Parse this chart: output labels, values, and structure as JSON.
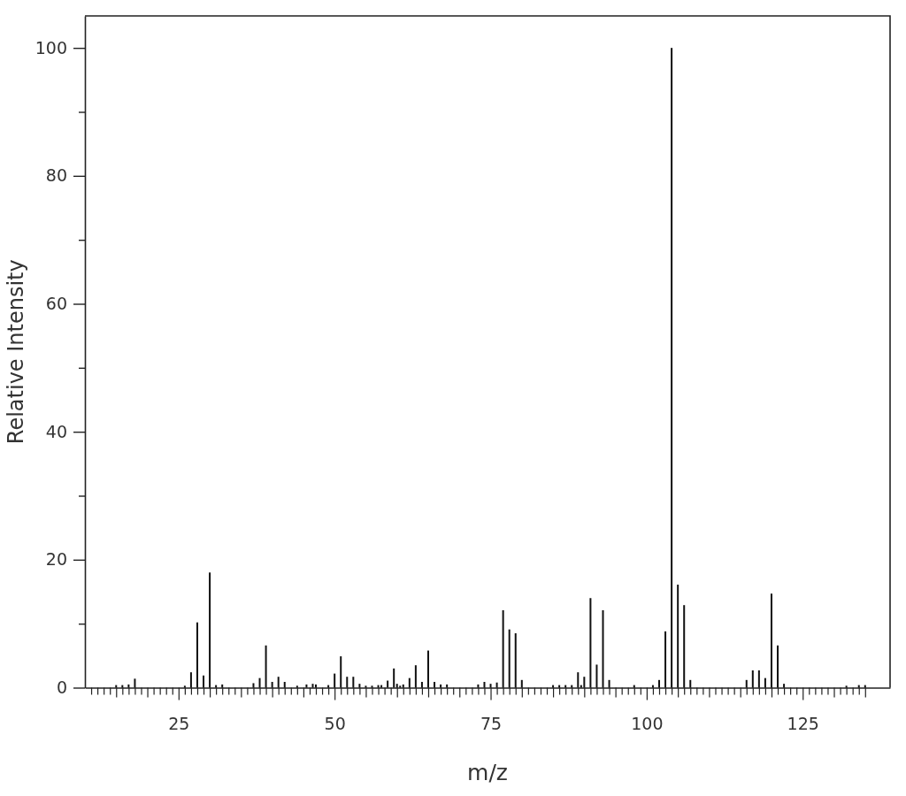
{
  "chart_data": {
    "type": "bar",
    "xlabel": "m/z",
    "ylabel": "Relative Intensity",
    "color": "#111111",
    "x": [
      15,
      16,
      17,
      18,
      26,
      27,
      28,
      29,
      30,
      31,
      32,
      37,
      38,
      39,
      40,
      41,
      42,
      44,
      45.5,
      46.5,
      47,
      49,
      50,
      51,
      52,
      53,
      54,
      55,
      56,
      57,
      57.5,
      58.5,
      59.5,
      60,
      60.5,
      61,
      62,
      63,
      64,
      65,
      66,
      67,
      68,
      73,
      74,
      75,
      76,
      77,
      78,
      79,
      80,
      85,
      86,
      87,
      88,
      89,
      89.5,
      90,
      91,
      92,
      93,
      94,
      98,
      101,
      102,
      103,
      104,
      105,
      106,
      107,
      116,
      117,
      118,
      119,
      120,
      121,
      122,
      132,
      134,
      135
    ],
    "values": [
      0.4,
      0.4,
      0.5,
      1.4,
      0.3,
      2.4,
      10.2,
      1.9,
      18.0,
      0.4,
      0.5,
      0.7,
      1.5,
      6.6,
      0.9,
      1.7,
      0.9,
      0.3,
      0.5,
      0.6,
      0.5,
      0.4,
      2.2,
      4.9,
      1.7,
      1.7,
      0.6,
      0.3,
      0.3,
      0.4,
      0.4,
      1.1,
      3.0,
      0.6,
      0.3,
      0.5,
      1.5,
      3.5,
      0.9,
      5.8,
      0.9,
      0.5,
      0.5,
      0.5,
      0.9,
      0.6,
      0.8,
      12.1,
      9.1,
      8.5,
      1.2,
      0.4,
      0.4,
      0.4,
      0.4,
      2.4,
      0.4,
      1.7,
      14.0,
      3.6,
      12.1,
      1.2,
      0.4,
      0.4,
      1.2,
      8.8,
      100,
      16.1,
      12.9,
      1.2,
      1.2,
      2.7,
      2.7,
      1.5,
      14.7,
      6.6,
      0.6,
      0.3,
      0.4,
      0.4
    ],
    "xlim": [
      10,
      139
    ],
    "xticks": [
      {
        "value": 11,
        "label": null
      },
      {
        "value": 12,
        "label": null
      },
      {
        "value": 13,
        "label": null
      },
      {
        "value": 14,
        "label": null
      },
      {
        "value": 15,
        "label": null
      },
      {
        "value": 16,
        "label": null
      },
      {
        "value": 17,
        "label": null
      },
      {
        "value": 18,
        "label": null
      },
      {
        "value": 19,
        "label": null
      },
      {
        "value": 20,
        "label": null
      },
      {
        "value": 21,
        "label": null
      },
      {
        "value": 22,
        "label": null
      },
      {
        "value": 23,
        "label": null
      },
      {
        "value": 24,
        "label": null
      },
      25,
      {
        "value": 26,
        "label": null
      },
      {
        "value": 27,
        "label": null
      },
      {
        "value": 28,
        "label": null
      },
      {
        "value": 29,
        "label": null
      },
      {
        "value": 30,
        "label": null
      },
      {
        "value": 31,
        "label": null
      },
      {
        "value": 32,
        "label": null
      },
      {
        "value": 33,
        "label": null
      },
      {
        "value": 34,
        "label": null
      },
      {
        "value": 35,
        "label": null
      },
      {
        "value": 36,
        "label": null
      },
      {
        "value": 37,
        "label": null
      },
      {
        "value": 38,
        "label": null
      },
      {
        "value": 39,
        "label": null
      },
      {
        "value": 40,
        "label": null
      },
      {
        "value": 41,
        "label": null
      },
      {
        "value": 42,
        "label": null
      },
      {
        "value": 43,
        "label": null
      },
      {
        "value": 44,
        "label": null
      },
      {
        "value": 45,
        "label": null
      },
      {
        "value": 46,
        "label": null
      },
      {
        "value": 47,
        "label": null
      },
      {
        "value": 48,
        "label": null
      },
      {
        "value": 49,
        "label": null
      },
      50,
      {
        "value": 51,
        "label": null
      },
      {
        "value": 52,
        "label": null
      },
      {
        "value": 53,
        "label": null
      },
      {
        "value": 54,
        "label": null
      },
      {
        "value": 55,
        "label": null
      },
      {
        "value": 56,
        "label": null
      },
      {
        "value": 57,
        "label": null
      },
      {
        "value": 58,
        "label": null
      },
      {
        "value": 59,
        "label": null
      },
      {
        "value": 60,
        "label": null
      },
      {
        "value": 61,
        "label": null
      },
      {
        "value": 62,
        "label": null
      },
      {
        "value": 63,
        "label": null
      },
      {
        "value": 64,
        "label": null
      },
      {
        "value": 65,
        "label": null
      },
      {
        "value": 66,
        "label": null
      },
      {
        "value": 67,
        "label": null
      },
      {
        "value": 68,
        "label": null
      },
      {
        "value": 69,
        "label": null
      },
      {
        "value": 70,
        "label": null
      },
      {
        "value": 71,
        "label": null
      },
      {
        "value": 72,
        "label": null
      },
      {
        "value": 73,
        "label": null
      },
      {
        "value": 74,
        "label": null
      },
      75,
      {
        "value": 76,
        "label": null
      },
      {
        "value": 77,
        "label": null
      },
      {
        "value": 78,
        "label": null
      },
      {
        "value": 79,
        "label": null
      },
      {
        "value": 80,
        "label": null
      },
      {
        "value": 81,
        "label": null
      },
      {
        "value": 82,
        "label": null
      },
      {
        "value": 83,
        "label": null
      },
      {
        "value": 84,
        "label": null
      },
      {
        "value": 85,
        "label": null
      },
      {
        "value": 86,
        "label": null
      },
      {
        "value": 87,
        "label": null
      },
      {
        "value": 88,
        "label": null
      },
      {
        "value": 89,
        "label": null
      },
      {
        "value": 90,
        "label": null
      },
      {
        "value": 91,
        "label": null
      },
      {
        "value": 92,
        "label": null
      },
      {
        "value": 93,
        "label": null
      },
      {
        "value": 94,
        "label": null
      },
      {
        "value": 95,
        "label": null
      },
      {
        "value": 96,
        "label": null
      },
      {
        "value": 97,
        "label": null
      },
      {
        "value": 98,
        "label": null
      },
      {
        "value": 99,
        "label": null
      },
      100,
      {
        "value": 101,
        "label": null
      },
      {
        "value": 102,
        "label": null
      },
      {
        "value": 103,
        "label": null
      },
      {
        "value": 104,
        "label": null
      },
      {
        "value": 105,
        "label": null
      },
      {
        "value": 106,
        "label": null
      },
      {
        "value": 107,
        "label": null
      },
      {
        "value": 108,
        "label": null
      },
      {
        "value": 109,
        "label": null
      },
      {
        "value": 110,
        "label": null
      },
      {
        "value": 111,
        "label": null
      },
      {
        "value": 112,
        "label": null
      },
      {
        "value": 113,
        "label": null
      },
      {
        "value": 114,
        "label": null
      },
      {
        "value": 115,
        "label": null
      },
      {
        "value": 116,
        "label": null
      },
      {
        "value": 117,
        "label": null
      },
      {
        "value": 118,
        "label": null
      },
      {
        "value": 119,
        "label": null
      },
      {
        "value": 120,
        "label": null
      },
      {
        "value": 121,
        "label": null
      },
      {
        "value": 122,
        "label": null
      },
      {
        "value": 123,
        "label": null
      },
      {
        "value": 124,
        "label": null
      },
      125,
      {
        "value": 126,
        "label": null
      },
      {
        "value": 127,
        "label": null
      },
      {
        "value": 128,
        "label": null
      },
      {
        "value": 129,
        "label": null
      },
      {
        "value": 130,
        "label": null
      },
      {
        "value": 131,
        "label": null
      },
      {
        "value": 132,
        "label": null
      },
      {
        "value": 133,
        "label": null
      },
      {
        "value": 134,
        "label": null
      },
      {
        "value": 135,
        "label": null
      }
    ],
    "ylim": [
      0,
      105
    ],
    "yticks": [
      0,
      {
        "value": 10,
        "label": null
      },
      20,
      {
        "value": 30,
        "label": null
      },
      40,
      {
        "value": 50,
        "label": null
      },
      60,
      {
        "value": 70,
        "label": null
      },
      80,
      {
        "value": 90,
        "label": null
      },
      100
    ]
  }
}
